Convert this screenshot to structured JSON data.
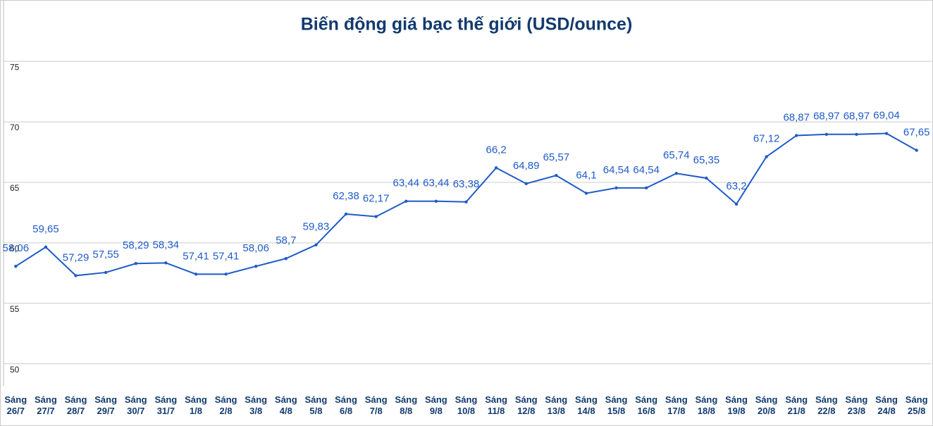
{
  "chart_data": {
    "type": "line",
    "title": "Biến động giá bạc thế giới (USD/ounce)",
    "categories": [
      "Sáng 26/7",
      "Sáng 27/7",
      "Sáng 28/7",
      "Sáng 29/7",
      "Sáng 30/7",
      "Sáng 31/7",
      "Sáng 1/8",
      "Sáng 2/8",
      "Sáng 3/8",
      "Sáng 4/8",
      "Sáng 5/8",
      "Sáng 6/8",
      "Sáng 7/8",
      "Sáng 8/8",
      "Sáng 9/8",
      "Sáng 10/8",
      "Sáng 11/8",
      "Sáng 12/8",
      "Sáng 13/8",
      "Sáng 14/8",
      "Sáng 15/8",
      "Sáng 16/8",
      "Sáng 17/8",
      "Sáng 18/8",
      "Sáng 19/8",
      "Sáng 20/8",
      "Sáng 21/8",
      "Sáng 22/8",
      "Sáng 23/8",
      "Sáng 24/8",
      "Sáng 25/8"
    ],
    "values": [
      58.06,
      59.65,
      57.29,
      57.55,
      58.29,
      58.34,
      57.41,
      57.41,
      58.06,
      58.7,
      59.83,
      62.38,
      62.17,
      63.44,
      63.44,
      63.38,
      66.2,
      64.89,
      65.57,
      64.1,
      64.54,
      64.54,
      65.74,
      65.35,
      63.2,
      67.12,
      68.87,
      68.97,
      68.97,
      69.04,
      67.65
    ],
    "value_labels": [
      "58,06",
      "59,65",
      "57,29",
      "57,55",
      "58,29",
      "58,34",
      "57,41",
      "57,41",
      "58,06",
      "58,7",
      "59,83",
      "62,38",
      "62,17",
      "63,44",
      "63,44",
      "63,38",
      "66,2",
      "64,89",
      "65,57",
      "64,1",
      "64,54",
      "64,54",
      "65,74",
      "65,35",
      "63,2",
      "67,12",
      "68,87",
      "68,97",
      "68,97",
      "69,04",
      "67,65"
    ],
    "color": "#1f5bc7",
    "ylim": [
      48,
      76
    ],
    "yticks": [
      50,
      55,
      60,
      65,
      70,
      75
    ],
    "grid": true
  }
}
